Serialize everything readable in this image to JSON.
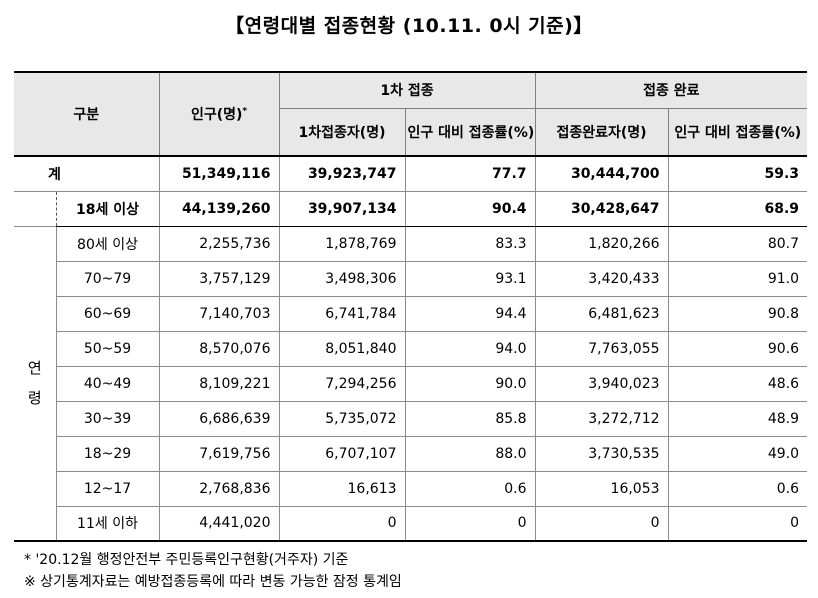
{
  "title": "【연령대별 접종현황 (10.11. 0시 기준)】",
  "header": {
    "category": "구분",
    "population": "인구(명)",
    "population_mark": "*",
    "first_dose": "1차 접종",
    "completed": "접종 완료",
    "first_count": "1차접종자(명)",
    "first_rate": "인구 대비 접종률(%)",
    "complete_count": "접종완료자(명)",
    "complete_rate": "인구 대비 접종률(%)"
  },
  "total": {
    "label": "계",
    "population": "51,349,116",
    "first_count": "39,923,747",
    "first_rate": "77.7",
    "complete_count": "30,444,700",
    "complete_rate": "59.3"
  },
  "adult": {
    "label": "18세 이상",
    "population": "44,139,260",
    "first_count": "39,907,134",
    "first_rate": "90.4",
    "complete_count": "30,428,647",
    "complete_rate": "68.9"
  },
  "age_group_label": "연\n령",
  "age_rows": [
    {
      "label": "80세 이상",
      "population": "2,255,736",
      "first_count": "1,878,769",
      "first_rate": "83.3",
      "complete_count": "1,820,266",
      "complete_rate": "80.7"
    },
    {
      "label": "70~79",
      "population": "3,757,129",
      "first_count": "3,498,306",
      "first_rate": "93.1",
      "complete_count": "3,420,433",
      "complete_rate": "91.0"
    },
    {
      "label": "60~69",
      "population": "7,140,703",
      "first_count": "6,741,784",
      "first_rate": "94.4",
      "complete_count": "6,481,623",
      "complete_rate": "90.8"
    },
    {
      "label": "50~59",
      "population": "8,570,076",
      "first_count": "8,051,840",
      "first_rate": "94.0",
      "complete_count": "7,763,055",
      "complete_rate": "90.6"
    },
    {
      "label": "40~49",
      "population": "8,109,221",
      "first_count": "7,294,256",
      "first_rate": "90.0",
      "complete_count": "3,940,023",
      "complete_rate": "48.6"
    },
    {
      "label": "30~39",
      "population": "6,686,639",
      "first_count": "5,735,072",
      "first_rate": "85.8",
      "complete_count": "3,272,712",
      "complete_rate": "48.9"
    },
    {
      "label": "18~29",
      "population": "7,619,756",
      "first_count": "6,707,107",
      "first_rate": "88.0",
      "complete_count": "3,730,535",
      "complete_rate": "49.0"
    },
    {
      "label": "12~17",
      "population": "2,768,836",
      "first_count": "16,613",
      "first_rate": "0.6",
      "complete_count": "16,053",
      "complete_rate": "0.6"
    },
    {
      "label": "11세 이하",
      "population": "4,441,020",
      "first_count": "0",
      "first_rate": "0",
      "complete_count": "0",
      "complete_rate": "0"
    }
  ],
  "notes": [
    "* '20.12월 행정안전부 주민등록인구현황(거주자) 기준",
    "※ 상기통계자료는 예방접종등록에 따라 변동 가능한 잠정 통계임"
  ]
}
